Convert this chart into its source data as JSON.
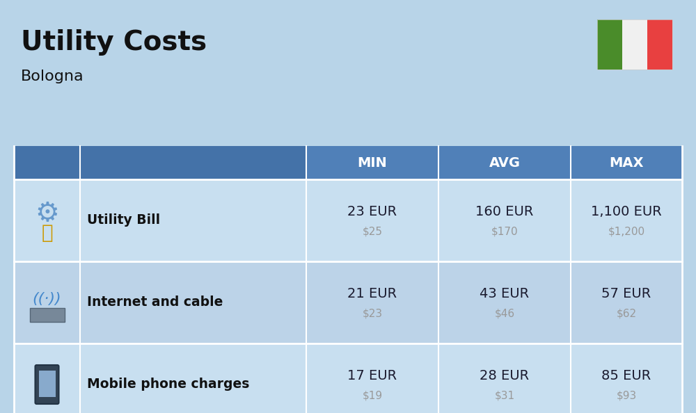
{
  "title": "Utility Costs",
  "subtitle": "Bologna",
  "bg_color": "#b8d4e8",
  "header_bg_color": "#4472a8",
  "header_text_color": "#ffffff",
  "row_bg_color_odd": "#c8dff0",
  "row_bg_color_even": "#bcd3e8",
  "table_border_color": "#ffffff",
  "headers": [
    "MIN",
    "AVG",
    "MAX"
  ],
  "rows": [
    {
      "icon_label": "utility",
      "name": "Utility Bill",
      "min_eur": "23 EUR",
      "min_usd": "$25",
      "avg_eur": "160 EUR",
      "avg_usd": "$170",
      "max_eur": "1,100 EUR",
      "max_usd": "$1,200"
    },
    {
      "icon_label": "internet",
      "name": "Internet and cable",
      "min_eur": "21 EUR",
      "min_usd": "$23",
      "avg_eur": "43 EUR",
      "avg_usd": "$46",
      "max_eur": "57 EUR",
      "max_usd": "$62"
    },
    {
      "icon_label": "mobile",
      "name": "Mobile phone charges",
      "min_eur": "17 EUR",
      "min_usd": "$19",
      "avg_eur": "28 EUR",
      "avg_usd": "$31",
      "max_eur": "85 EUR",
      "max_usd": "$93"
    }
  ],
  "flag_green": "#4a8c2a",
  "flag_white": "#f0f0f0",
  "flag_red": "#e84040",
  "eur_text_color": "#1a1a2e",
  "usd_text_color": "#999999",
  "name_text_color": "#111111",
  "title_color": "#111111",
  "subtitle_color": "#111111"
}
